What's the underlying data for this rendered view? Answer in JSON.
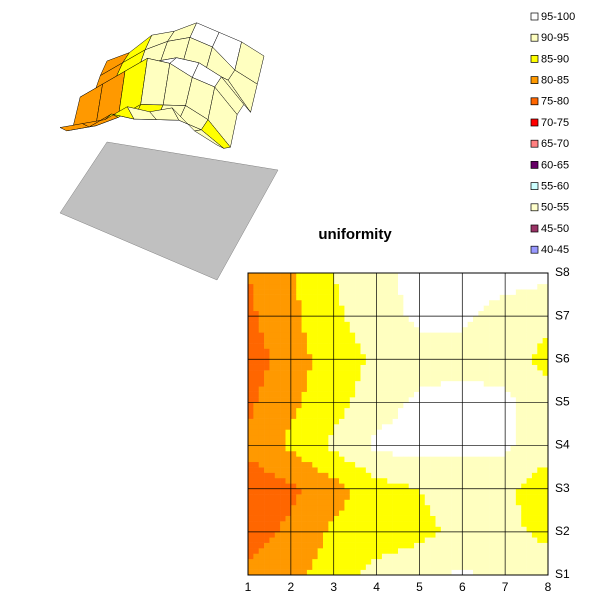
{
  "chart_data": {
    "type": "contour",
    "title": "uniformity",
    "x": [
      1,
      2,
      3,
      4,
      5,
      6,
      7,
      8
    ],
    "series": [
      {
        "name": "S1",
        "values": [
          81,
          84,
          87,
          92,
          93,
          96,
          93,
          92
        ]
      },
      {
        "name": "S2",
        "values": [
          78,
          81,
          86,
          87,
          89,
          91,
          91,
          89
        ]
      },
      {
        "name": "S3",
        "values": [
          77,
          79,
          83,
          88,
          90,
          92,
          91,
          87
        ]
      },
      {
        "name": "S4",
        "values": [
          81,
          86,
          91,
          96,
          97,
          96,
          96,
          92
        ]
      },
      {
        "name": "S5",
        "values": [
          79,
          84,
          88,
          93,
          96,
          97,
          96,
          92
        ]
      },
      {
        "name": "S6",
        "values": [
          77,
          83,
          87,
          91,
          93,
          93,
          93,
          88
        ]
      },
      {
        "name": "S7",
        "values": [
          79,
          84,
          89,
          93,
          96,
          96,
          93,
          92
        ]
      },
      {
        "name": "S8",
        "values": [
          80,
          84,
          90,
          93,
          97,
          97,
          97,
          96
        ]
      }
    ],
    "bands": [
      {
        "name": "95-100",
        "min": 95,
        "max": 100,
        "color": "#ffffff"
      },
      {
        "name": "90-95",
        "min": 90,
        "max": 95,
        "color": "#ffffc0"
      },
      {
        "name": "85-90",
        "min": 85,
        "max": 90,
        "color": "#ffff00"
      },
      {
        "name": "80-85",
        "min": 80,
        "max": 85,
        "color": "#ff9900"
      },
      {
        "name": "75-80",
        "min": 75,
        "max": 80,
        "color": "#ff6600"
      },
      {
        "name": "70-75",
        "min": 70,
        "max": 75,
        "color": "#ff0000"
      },
      {
        "name": "65-70",
        "min": 65,
        "max": 70,
        "color": "#ff8080"
      },
      {
        "name": "60-65",
        "min": 60,
        "max": 65,
        "color": "#660066"
      },
      {
        "name": "55-60",
        "min": 55,
        "max": 60,
        "color": "#ccffff"
      },
      {
        "name": "50-55",
        "min": 50,
        "max": 55,
        "color": "#ffffcc"
      },
      {
        "name": "45-50",
        "min": 45,
        "max": 50,
        "color": "#993366"
      },
      {
        "name": "40-45",
        "min": 40,
        "max": 45,
        "color": "#9999ff"
      }
    ]
  }
}
